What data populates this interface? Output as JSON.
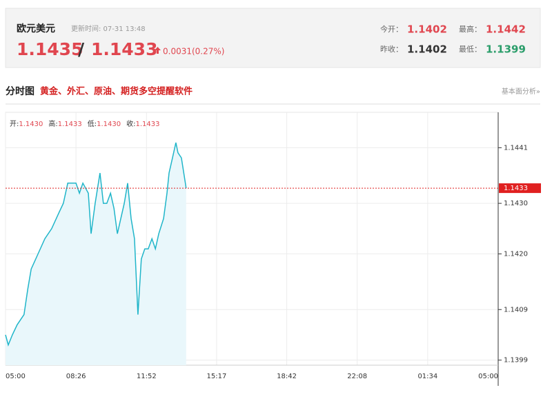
{
  "header": {
    "name": "欧元美元",
    "update_time": "更新时间: 07-31 13:48",
    "price_bid": "1.1435",
    "separator": "/",
    "price_ask": "1.1433",
    "change": "0.0031(0.27%)",
    "bid_color": "#e0464f",
    "change_color": "#e0464f",
    "stats": [
      {
        "label": "今开：",
        "value": "1.1402",
        "color": "#e0464f"
      },
      {
        "label": "最高：",
        "value": "1.1442",
        "color": "#e0464f"
      },
      {
        "label": "昨收：",
        "value": "1.1402",
        "color": "#333333"
      },
      {
        "label": "最低：",
        "value": "1.1399",
        "color": "#2a9d6a"
      }
    ]
  },
  "section": {
    "title": "分时图",
    "promo": "黄金、外汇、原油、期货多空提醒软件",
    "link": "基本面分析»"
  },
  "chart_data": {
    "type": "line",
    "ohlc": [
      {
        "label": "开:",
        "value": "1.1430"
      },
      {
        "label": "高:",
        "value": "1.1433"
      },
      {
        "label": "低:",
        "value": "1.1430"
      },
      {
        "label": "收:",
        "value": "1.1433"
      }
    ],
    "x": [
      0,
      8,
      20,
      34,
      54,
      65,
      75,
      95,
      115,
      135,
      155,
      169,
      182,
      196,
      206,
      216,
      226,
      242,
      250,
      262,
      276,
      286,
      296,
      307,
      317,
      327,
      337,
      347,
      357,
      367,
      377,
      387,
      397,
      407,
      417,
      428,
      438,
      448,
      462,
      472,
      478,
      488,
      498,
      504,
      514,
      528
    ],
    "series": [
      {
        "name": "欧元美元",
        "color": "#1fb5c9",
        "fill": "#e9f7fb",
        "values": [
          1.1404,
          1.1402,
          1.1404,
          1.1406,
          1.1408,
          1.1413,
          1.1417,
          1.142,
          1.1423,
          1.1425,
          1.1428,
          1.143,
          1.1434,
          1.1434,
          1.1434,
          1.1432,
          1.1434,
          1.1432,
          1.1424,
          1.143,
          1.1436,
          1.143,
          1.143,
          1.1432,
          1.1429,
          1.1424,
          1.1427,
          1.143,
          1.1434,
          1.1427,
          1.1423,
          1.1408,
          1.1419,
          1.1421,
          1.1421,
          1.1423,
          1.1421,
          1.1424,
          1.1427,
          1.1432,
          1.1436,
          1.1439,
          1.1442,
          1.144,
          1.1439,
          1.1433
        ]
      }
    ],
    "current_price": 1.1433,
    "current_color": "#e02020",
    "xlim": [
      0,
      1440
    ],
    "xticks": [
      {
        "value": 0,
        "label": "05:00"
      },
      {
        "value": 206,
        "label": "08:26"
      },
      {
        "value": 412,
        "label": "11:52"
      },
      {
        "value": 617,
        "label": "15:17"
      },
      {
        "value": 822,
        "label": "18:42"
      },
      {
        "value": 1028,
        "label": "22:08"
      },
      {
        "value": 1234,
        "label": "01:34"
      },
      {
        "value": 1440,
        "label": "05:00"
      }
    ],
    "ylim": [
      1.1398,
      1.1448
    ],
    "yticks": [
      1.1399,
      1.1409,
      {
        "value": 1.142,
        "label": "1.1420"
      },
      {
        "value": 1.143,
        "label": "1.1430"
      },
      1.1441
    ],
    "grid": true
  }
}
